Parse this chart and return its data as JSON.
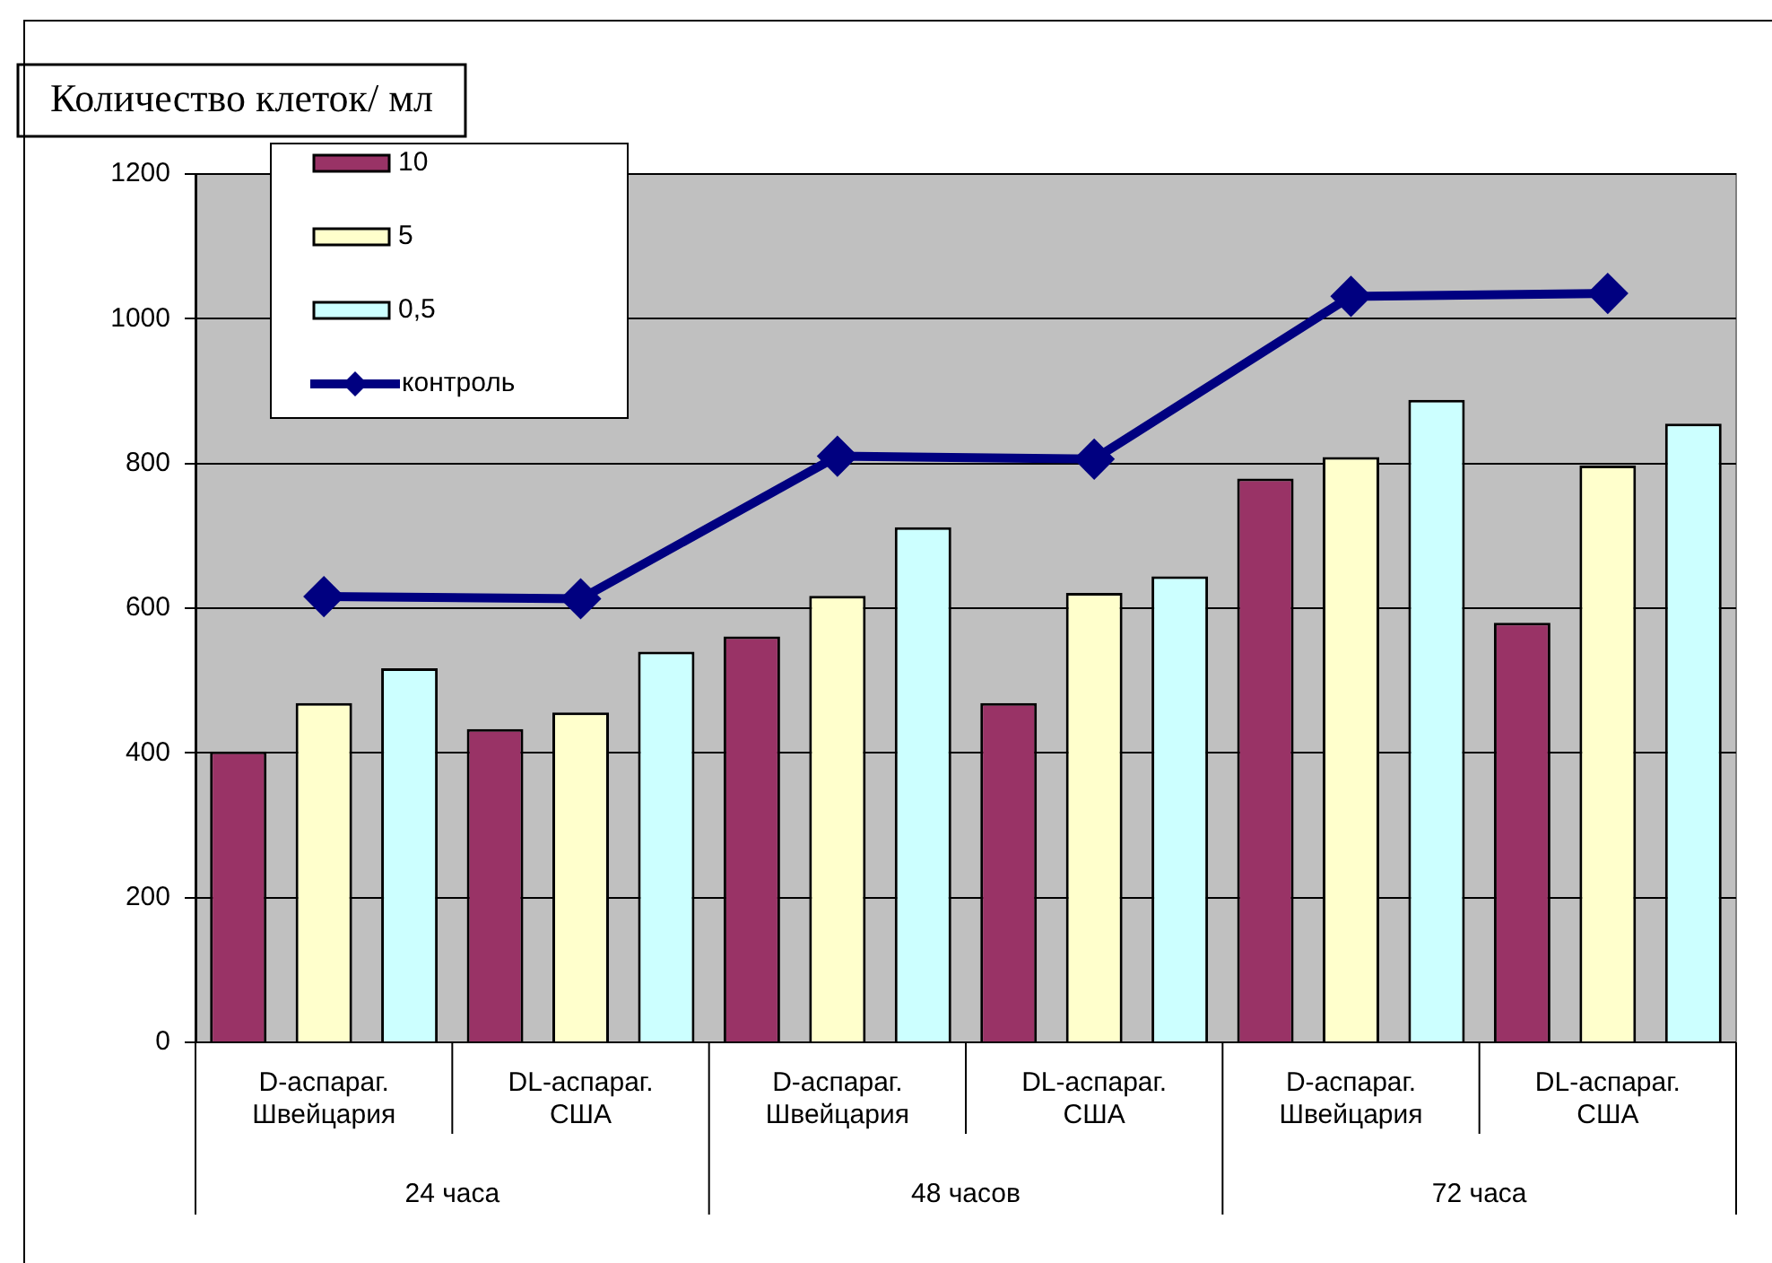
{
  "chart_data": {
    "type": "bar",
    "ylabel": "Количество клеток/ мл",
    "categories": [
      "D-аспараг. Швейцария",
      "DL-аспараг. США",
      "D-аспараг. Швейцария",
      "DL-аспараг. США",
      "D-аспараг. Швейцария",
      "DL-аспараг. США"
    ],
    "annotations": [
      "24 часа",
      "48 часов",
      "72 часа"
    ],
    "series": [
      {
        "name": "10",
        "color": "#993366",
        "values": [
          402,
          433,
          561,
          469,
          779,
          580
        ]
      },
      {
        "name": "5",
        "color": "#ffffcc",
        "values": [
          469,
          456,
          617,
          621,
          809,
          797
        ]
      },
      {
        "name": "0,5",
        "color": "#ccffff",
        "values": [
          517,
          540,
          712,
          644,
          888,
          855
        ]
      },
      {
        "name": "контроль",
        "type": "line",
        "color": "#000080",
        "marker": "diamond",
        "values": [
          616,
          613,
          810,
          806,
          1031,
          1035
        ]
      }
    ],
    "ylim": [
      0,
      1200
    ],
    "yticks": [
      0,
      200,
      400,
      600,
      800,
      1000,
      1200
    ],
    "grid": "y",
    "legend": "top left"
  }
}
